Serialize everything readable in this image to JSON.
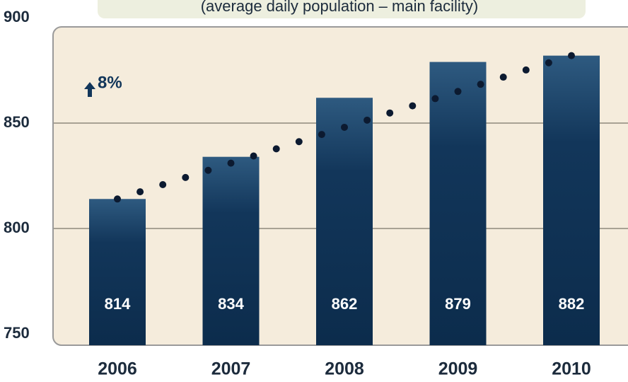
{
  "chart_data": {
    "type": "bar",
    "subtitle": "(average daily population – main facility)",
    "annotation": "8%",
    "categories": [
      "2006",
      "2007",
      "2008",
      "2009",
      "2010"
    ],
    "values": [
      814,
      834,
      862,
      879,
      882
    ],
    "color": "#12365a",
    "ylim": [
      750,
      900
    ],
    "yticks": [
      750,
      800,
      850,
      900
    ],
    "grid": true
  }
}
